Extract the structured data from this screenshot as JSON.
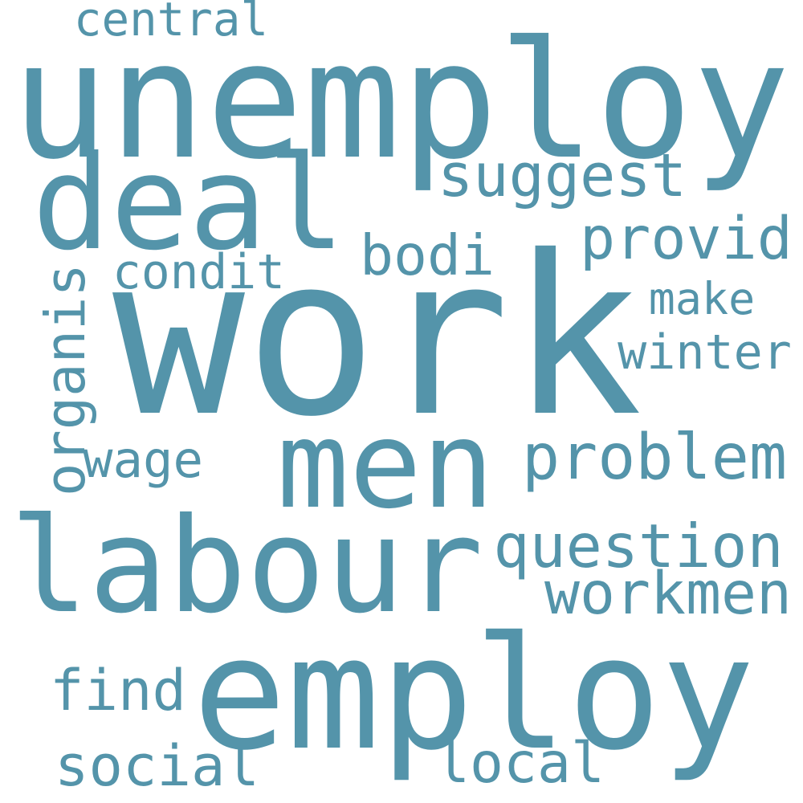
{
  "color": "#5494aa",
  "words": [
    {
      "text": "unemploy"
    },
    {
      "text": "work"
    },
    {
      "text": "employ"
    },
    {
      "text": "labour"
    },
    {
      "text": "men"
    },
    {
      "text": "deal"
    },
    {
      "text": "question"
    },
    {
      "text": "problem"
    },
    {
      "text": "workmen"
    },
    {
      "text": "suggest"
    },
    {
      "text": "provid"
    },
    {
      "text": "organis"
    },
    {
      "text": "local"
    },
    {
      "text": "social"
    },
    {
      "text": "find"
    },
    {
      "text": "bodi"
    },
    {
      "text": "condit"
    },
    {
      "text": "winter"
    },
    {
      "text": "central"
    },
    {
      "text": "wage"
    },
    {
      "text": "make"
    }
  ]
}
